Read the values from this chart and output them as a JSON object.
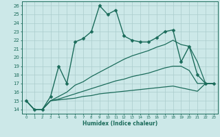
{
  "xlabel": "Humidex (Indice chaleur)",
  "bg_color": "#cce8e8",
  "grid_color": "#aacccc",
  "line_color": "#1a6b5a",
  "xlim": [
    -0.5,
    23.5
  ],
  "ylim": [
    13.5,
    26.5
  ],
  "xticks": [
    0,
    1,
    2,
    3,
    4,
    5,
    6,
    7,
    8,
    9,
    10,
    11,
    12,
    13,
    14,
    15,
    16,
    17,
    18,
    19,
    20,
    21,
    22,
    23
  ],
  "yticks": [
    14,
    15,
    16,
    17,
    18,
    19,
    20,
    21,
    22,
    23,
    24,
    25,
    26
  ],
  "series": [
    {
      "x": [
        0,
        1,
        2,
        3,
        4,
        5,
        6,
        7,
        8,
        9,
        10,
        11,
        12,
        13,
        14,
        15,
        16,
        17,
        18,
        19,
        20,
        21,
        22,
        23
      ],
      "y": [
        15,
        14,
        14,
        15.5,
        19,
        17,
        21.8,
        22.2,
        23,
        26,
        25,
        25.5,
        22.5,
        22,
        21.8,
        21.8,
        22.3,
        23,
        23.2,
        19.5,
        21.3,
        18,
        17,
        17
      ],
      "marker": "D",
      "markersize": 2.5,
      "linewidth": 1.0
    },
    {
      "x": [
        0,
        1,
        2,
        3,
        4,
        5,
        6,
        7,
        8,
        9,
        10,
        11,
        12,
        13,
        14,
        15,
        16,
        17,
        18,
        19,
        20,
        21,
        22,
        23
      ],
      "y": [
        15,
        14,
        14,
        15,
        15.1,
        15.2,
        15.3,
        15.5,
        15.6,
        15.8,
        15.9,
        16.0,
        16.1,
        16.2,
        16.3,
        16.4,
        16.5,
        16.6,
        16.7,
        16.5,
        16.3,
        16.1,
        17.0,
        17.0
      ],
      "marker": null,
      "markersize": 0,
      "linewidth": 0.9
    },
    {
      "x": [
        0,
        1,
        2,
        3,
        4,
        5,
        6,
        7,
        8,
        9,
        10,
        11,
        12,
        13,
        14,
        15,
        16,
        17,
        18,
        19,
        20,
        21,
        22,
        23
      ],
      "y": [
        15,
        14,
        14,
        15,
        15.2,
        15.5,
        15.8,
        16.1,
        16.4,
        16.7,
        17.0,
        17.3,
        17.5,
        17.8,
        18.0,
        18.2,
        18.5,
        18.8,
        19.0,
        19.0,
        18.5,
        17.0,
        17.0,
        17.0
      ],
      "marker": null,
      "markersize": 0,
      "linewidth": 0.9
    },
    {
      "x": [
        0,
        1,
        2,
        3,
        4,
        5,
        6,
        7,
        8,
        9,
        10,
        11,
        12,
        13,
        14,
        15,
        16,
        17,
        18,
        19,
        20,
        21,
        22,
        23
      ],
      "y": [
        15,
        14,
        14,
        15,
        15.5,
        16.0,
        16.8,
        17.2,
        17.8,
        18.3,
        18.8,
        19.3,
        19.8,
        20.2,
        20.5,
        20.8,
        21.2,
        21.5,
        22.0,
        21.5,
        21.3,
        19.5,
        17.0,
        17.0
      ],
      "marker": null,
      "markersize": 0,
      "linewidth": 0.9
    }
  ]
}
